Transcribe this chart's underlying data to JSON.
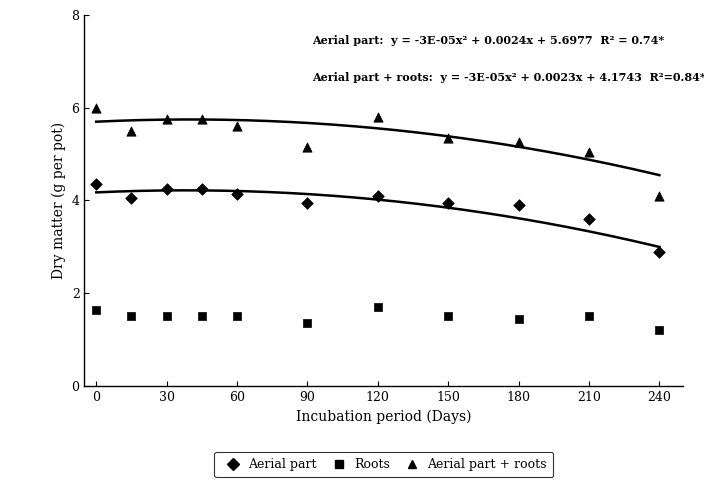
{
  "x_aerial": [
    0,
    15,
    30,
    45,
    60,
    90,
    120,
    150,
    180,
    210,
    240
  ],
  "y_aerial": [
    4.35,
    4.05,
    4.25,
    4.25,
    4.15,
    3.95,
    4.1,
    3.95,
    3.9,
    3.6,
    2.9
  ],
  "x_roots": [
    0,
    15,
    30,
    45,
    60,
    90,
    120,
    150,
    180,
    210,
    240
  ],
  "y_roots": [
    1.65,
    1.5,
    1.5,
    1.5,
    1.5,
    1.35,
    1.7,
    1.5,
    1.45,
    1.5,
    1.2
  ],
  "x_total": [
    0,
    15,
    30,
    45,
    60,
    90,
    120,
    150,
    180,
    210,
    240
  ],
  "y_total": [
    6.0,
    5.5,
    5.75,
    5.75,
    5.6,
    5.15,
    5.8,
    5.35,
    5.25,
    5.05,
    4.1
  ],
  "aerial_eq": {
    "a": -3e-05,
    "b": 0.0024,
    "c": 5.6977
  },
  "total_eq": {
    "a": -3e-05,
    "b": 0.0023,
    "c": 4.1743
  },
  "annotation_aerial": "Aerial part:  y = -3E-05x² + 0.0024x + 5.6977  R² = 0.74*",
  "annotation_total": "Aerial part + roots:  y = -3E-05x² + 0.0023x + 4.1743  R²=0.84*",
  "xlabel": "Incubation period (Days)",
  "ylabel": "Dry matter (g per pot)",
  "xlim": [
    -5,
    250
  ],
  "ylim": [
    0,
    8
  ],
  "yticks": [
    0,
    2,
    4,
    6,
    8
  ],
  "xticks": [
    0,
    30,
    60,
    90,
    120,
    150,
    180,
    210,
    240
  ],
  "line_color": "#000000",
  "marker_color": "#000000",
  "background_color": "#ffffff",
  "legend_labels": [
    "Aerial part",
    "Roots",
    "Aerial part + roots"
  ]
}
